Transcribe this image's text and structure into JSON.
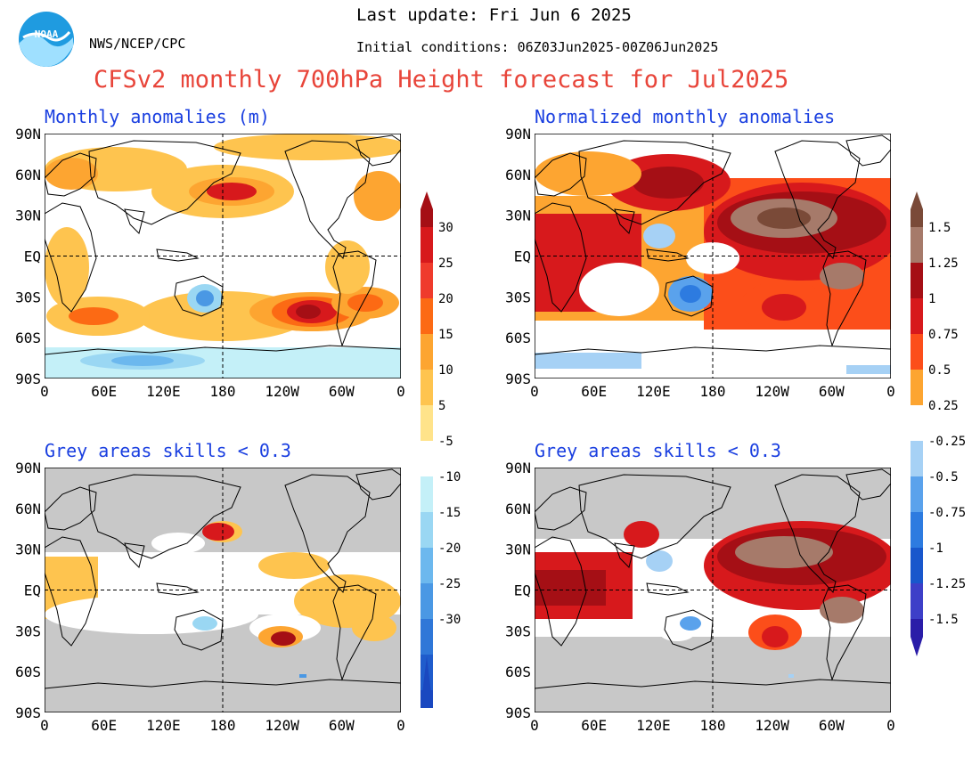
{
  "header": {
    "agency": "NWS/NCEP/CPC",
    "last_update": "Last update: Fri Jun 6 2025",
    "initial_conditions": "Initial conditions: 06Z03Jun2025-00Z06Jun2025",
    "title": "CFSv2 monthly 700hPa Height forecast for Jul2025",
    "logo_text": "NOAA"
  },
  "axes": {
    "lat_labels": [
      "90N",
      "60N",
      "30N",
      "EQ",
      "30S",
      "60S",
      "90S"
    ],
    "lon_labels": [
      "0",
      "60E",
      "120E",
      "180",
      "120W",
      "60W",
      "0"
    ]
  },
  "panels": [
    {
      "id": "top-left",
      "title": "Monthly anomalies (m)"
    },
    {
      "id": "top-right",
      "title": "Normalized monthly anomalies"
    },
    {
      "id": "bottom-left",
      "title": "Grey areas skills < 0.3"
    },
    {
      "id": "bottom-right",
      "title": "Grey areas skills < 0.3"
    }
  ],
  "colorbars": {
    "height_m": {
      "positive_labels": [
        "30",
        "25",
        "20",
        "15",
        "10",
        "5"
      ],
      "negative_labels": [
        "-5",
        "-10",
        "-15",
        "-20",
        "-25",
        "-30"
      ],
      "positive_colors": [
        "#a50f15",
        "#d7191c",
        "#ef3b2c",
        "#fc6a14",
        "#fda531",
        "#fec44f",
        "#ffe38a"
      ],
      "negative_colors": [
        "#c4f0f8",
        "#9ad7f3",
        "#6cb8ee",
        "#4a98e4",
        "#2f77d8",
        "#1f5ccc",
        "#1a48c0"
      ]
    },
    "normalized": {
      "positive_labels": [
        "1.5",
        "1.25",
        "1",
        "0.75",
        "0.5",
        "0.25"
      ],
      "negative_labels": [
        "-0.25",
        "-0.5",
        "-0.75",
        "-1",
        "-1.25",
        "-1.5"
      ],
      "positive_colors": [
        "#7a4a38",
        "#a67a6a",
        "#a50f15",
        "#d7191c",
        "#fc4e1a",
        "#fda531"
      ],
      "negative_colors": [
        "#a6d1f5",
        "#5aa2ec",
        "#2d7be0",
        "#1857cc",
        "#3d3fc8",
        "#2a1da8"
      ]
    }
  },
  "map_colors": {
    "grey_skill": "#c8c8c8",
    "coast": "#000000"
  }
}
